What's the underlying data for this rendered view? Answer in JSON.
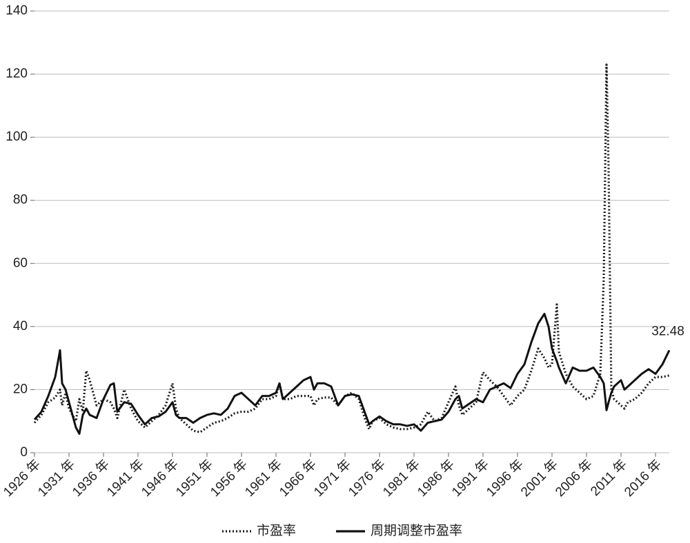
{
  "chart_data": {
    "type": "line",
    "x": [
      1926,
      1927,
      1928,
      1929,
      1929.7,
      1930,
      1930.5,
      1931,
      1932,
      1932.5,
      1933,
      1933.5,
      1934,
      1935,
      1936,
      1937,
      1937.5,
      1938,
      1939,
      1940,
      1941,
      1942,
      1943,
      1944,
      1945,
      1946,
      1946.5,
      1947,
      1948,
      1949,
      1950,
      1951,
      1952,
      1953,
      1954,
      1955,
      1956,
      1957,
      1958,
      1959,
      1960,
      1961,
      1961.5,
      1962,
      1963,
      1964,
      1965,
      1966,
      1966.5,
      1967,
      1968,
      1969,
      1970,
      1971,
      1972,
      1973,
      1974,
      1974.5,
      1975,
      1976,
      1977,
      1978,
      1979,
      1980,
      1981,
      1982,
      1983,
      1984,
      1985,
      1986,
      1987,
      1987.5,
      1988,
      1989,
      1990,
      1991,
      1992,
      1993,
      1994,
      1995,
      1996,
      1997,
      1998,
      1999,
      1999.9,
      2000.5,
      2001,
      2001.7,
      2002,
      2003,
      2004,
      2005,
      2006,
      2007,
      2008,
      2008.5,
      2008.9,
      2009.2,
      2009.6,
      2010,
      2011,
      2011.5,
      2012,
      2013,
      2014,
      2015,
      2016,
      2017,
      2018
    ],
    "series": [
      {
        "name": "市盈率",
        "color": "#1a1a1a",
        "style": "dotted",
        "values": [
          9.5,
          12,
          16,
          17.5,
          20,
          15,
          19,
          14,
          10,
          17,
          13,
          26,
          23,
          15,
          17,
          16,
          14,
          11,
          20,
          14,
          10,
          8,
          10,
          12,
          15,
          22,
          14,
          11,
          9,
          7,
          6.5,
          8,
          9.5,
          10,
          11,
          12.5,
          13,
          13,
          14,
          17,
          17,
          18,
          22,
          17,
          17,
          18,
          18,
          18,
          15,
          17,
          17.5,
          17.5,
          15,
          18,
          19,
          17,
          10,
          7.5,
          10,
          11,
          9,
          8,
          7.5,
          7.5,
          8,
          9,
          13,
          10,
          11,
          16,
          21,
          15,
          12,
          14,
          16,
          25.5,
          23,
          21,
          18,
          15,
          18,
          20,
          26,
          33,
          30,
          27,
          28,
          47,
          32,
          25,
          21,
          19,
          17,
          18,
          25,
          55,
          123,
          90,
          20,
          17,
          15,
          14,
          16,
          17,
          19,
          22,
          24,
          24,
          24.5
        ]
      },
      {
        "name": "周期调整市盈率",
        "color": "#111111",
        "style": "solid",
        "values": [
          10.5,
          13,
          18,
          24,
          32.5,
          22,
          20,
          16,
          8,
          6,
          12,
          14,
          12,
          11,
          17,
          21.5,
          22,
          13,
          16,
          15.5,
          12,
          9,
          11,
          11.5,
          13,
          16,
          12,
          11,
          11,
          9.5,
          11,
          12,
          12.5,
          12,
          14,
          18,
          19,
          17,
          15,
          18,
          18,
          19,
          22,
          17,
          19,
          21,
          23,
          24,
          20,
          22,
          22,
          21,
          15,
          18,
          18.5,
          18,
          12,
          9,
          10,
          11.5,
          10,
          9,
          9,
          8.5,
          9,
          7,
          9.5,
          10,
          10.5,
          13,
          17,
          18,
          14,
          15.5,
          17,
          16,
          20,
          21,
          22,
          20.5,
          25,
          28,
          35,
          41,
          44,
          40,
          33,
          29,
          27,
          22,
          27,
          26,
          26,
          27,
          24,
          22,
          13.5,
          16,
          19,
          21,
          23,
          20,
          21,
          23,
          25,
          26.5,
          25,
          28,
          32.48
        ]
      }
    ],
    "xlim": [
      1926,
      2018
    ],
    "xticks": [
      {
        "value": 1926,
        "label": "1926 年"
      },
      {
        "value": 1931,
        "label": "1931 年"
      },
      {
        "value": 1936,
        "label": "1936 年"
      },
      {
        "value": 1941,
        "label": "1941 年"
      },
      {
        "value": 1946,
        "label": "1946 年"
      },
      {
        "value": 1951,
        "label": "1951 年"
      },
      {
        "value": 1956,
        "label": "1956 年"
      },
      {
        "value": 1961,
        "label": "1961 年"
      },
      {
        "value": 1966,
        "label": "1966 年"
      },
      {
        "value": 1971,
        "label": "1971 年"
      },
      {
        "value": 1976,
        "label": "1976 年"
      },
      {
        "value": 1981,
        "label": "1981 年"
      },
      {
        "value": 1986,
        "label": "1986 年"
      },
      {
        "value": 1991,
        "label": "1991 年"
      },
      {
        "value": 1996,
        "label": "1996 年"
      },
      {
        "value": 2001,
        "label": "2001 年"
      },
      {
        "value": 2006,
        "label": "2006 年"
      },
      {
        "value": 2011,
        "label": "2011 年"
      },
      {
        "value": 2016,
        "label": "2016 年"
      }
    ],
    "ylim": [
      0,
      140
    ],
    "yticks": [
      0,
      20,
      40,
      60,
      80,
      100,
      120,
      140
    ],
    "grid": true,
    "legend": "bottom"
  }
}
